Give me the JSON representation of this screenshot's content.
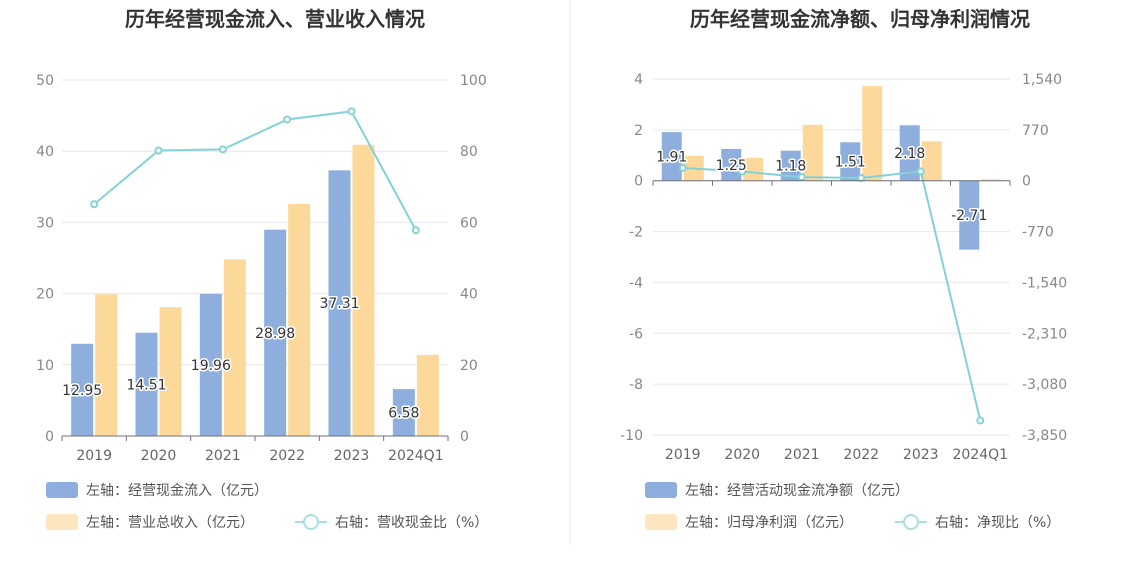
{
  "chart_data": [
    {
      "type": "bar",
      "title": "历年经营现金流入、营业收入情况",
      "categories": [
        "2019",
        "2020",
        "2021",
        "2022",
        "2023",
        "2024Q1"
      ],
      "series": [
        {
          "name": "左轴：经营现金流入（亿元）",
          "axis": "left",
          "type": "bar",
          "color": "#8eaedd",
          "values": [
            12.95,
            14.51,
            19.96,
            28.98,
            37.31,
            6.58
          ],
          "labels": [
            "12.95",
            "14.51",
            "19.96",
            "28.98",
            "37.31",
            "6.58"
          ]
        },
        {
          "name": "左轴：营业总收入（亿元）",
          "axis": "left",
          "type": "bar",
          "color": "#fcd99a",
          "values": [
            19.9,
            18.1,
            24.8,
            32.6,
            40.9,
            11.4
          ]
        },
        {
          "name": "右轴：营收现金比（%）",
          "axis": "right",
          "type": "line",
          "color": "#83d2d8",
          "values": [
            65.1,
            80.2,
            80.5,
            88.9,
            91.2,
            57.8
          ]
        }
      ],
      "left_ticks": [
        "50",
        "40",
        "30",
        "20",
        "10",
        "0"
      ],
      "right_ticks": [
        "100",
        "80",
        "60",
        "40",
        "20",
        "0"
      ],
      "ylim_left": [
        0,
        50
      ],
      "ylim_right": [
        0,
        100
      ]
    },
    {
      "type": "bar",
      "title": "历年经营现金流净额、归母净利润情况",
      "categories": [
        "2019",
        "2020",
        "2021",
        "2022",
        "2023",
        "2024Q1"
      ],
      "series": [
        {
          "name": "左轴：经营活动现金流净额（亿元）",
          "axis": "left",
          "type": "bar",
          "color": "#8eaedd",
          "values": [
            1.91,
            1.25,
            1.18,
            1.51,
            2.18,
            -2.71
          ],
          "labels": [
            "1.91",
            "1.25",
            "1.18",
            "1.51",
            "2.18",
            "-2.71"
          ]
        },
        {
          "name": "左轴：归母净利润（亿元）",
          "axis": "left",
          "type": "bar",
          "color": "#fcd99a",
          "values": [
            0.98,
            0.9,
            2.2,
            3.72,
            1.55,
            0.05
          ]
        },
        {
          "name": "右轴：净现比（%）",
          "axis": "right",
          "type": "line",
          "color": "#83d2d8",
          "values": [
            195,
            139,
            54,
            41,
            141,
            -3630
          ]
        }
      ],
      "left_ticks": [
        "4",
        "2",
        "0",
        "-2",
        "-4",
        "-6",
        "-8",
        "-10"
      ],
      "right_ticks": [
        "1,540",
        "770",
        "0",
        "-770",
        "-1,540",
        "-2,310",
        "-3,080",
        "-3,850"
      ],
      "ylim_left": [
        -10,
        4
      ],
      "ylim_right": [
        -3850,
        1540
      ]
    }
  ]
}
